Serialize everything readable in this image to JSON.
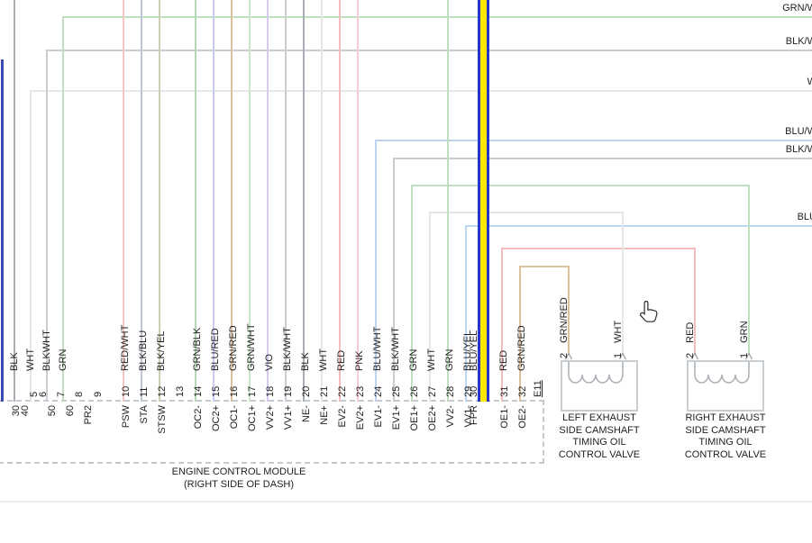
{
  "ecm": {
    "label_line1": "ENGINE CONTROL MODULE",
    "label_line2": "(RIGHT SIDE OF DASH)",
    "connector_id": "E11",
    "left_terminals": {
      "colors": [
        "BLK",
        "WHT",
        "BLKWHT",
        "GRN"
      ],
      "row_labels": [
        "30",
        "40",
        "5",
        "6",
        "50",
        "7",
        "60",
        "8",
        "PR2",
        "9"
      ]
    },
    "pins": [
      {
        "num": "10",
        "color": "RED/WHT",
        "name": "PSW"
      },
      {
        "num": "11",
        "color": "BLK/BLU",
        "name": "STA"
      },
      {
        "num": "12",
        "color": "BLK/YEL",
        "name": "STSW"
      },
      {
        "num": "13",
        "color": "",
        "name": ""
      },
      {
        "num": "14",
        "color": "GRN/BLK",
        "name": "OC2-"
      },
      {
        "num": "15",
        "color": "BLU/RED",
        "name": "OC2+"
      },
      {
        "num": "16",
        "color": "GRN/RED",
        "name": "OC1-"
      },
      {
        "num": "17",
        "color": "GRN/WHT",
        "name": "OC1+"
      },
      {
        "num": "18",
        "color": "VIO",
        "name": "VV2+"
      },
      {
        "num": "19",
        "color": "BLK/WHT",
        "name": "VV1+"
      },
      {
        "num": "20",
        "color": "BLK",
        "name": "NE-"
      },
      {
        "num": "21",
        "color": "WHT",
        "name": "NE+"
      },
      {
        "num": "22",
        "color": "RED",
        "name": "EV2-"
      },
      {
        "num": "23",
        "color": "PNK",
        "name": "EV2+"
      },
      {
        "num": "24",
        "color": "BLU/WHT",
        "name": "EV1-"
      },
      {
        "num": "25",
        "color": "BLK/WHT",
        "name": "EV1+"
      },
      {
        "num": "26",
        "color": "GRN",
        "name": "OE1+"
      },
      {
        "num": "27",
        "color": "WHT",
        "name": "OE2+"
      },
      {
        "num": "28",
        "color": "GRN",
        "name": "VV2-"
      },
      {
        "num": "29",
        "color": "BLU/YEL",
        "name": "VV1-"
      },
      {
        "num": "30",
        "color": "BLU/YEL",
        "name": "FPR",
        "highlighted": true
      },
      {
        "num": "31",
        "color": "RED",
        "name": "OE1-"
      },
      {
        "num": "32",
        "color": "GRN/RED",
        "name": "OE2-"
      }
    ]
  },
  "right_exit_labels": [
    "GRN/W",
    "BLK/W",
    "W",
    "BLU/W",
    "BLK/W",
    "BLU"
  ],
  "valves": {
    "left": {
      "pins": [
        {
          "num": "2",
          "color": "GRN/RED"
        },
        {
          "num": "1",
          "color": "WHT"
        }
      ],
      "label_lines": [
        "LEFT EXHAUST",
        "SIDE CAMSHAFT",
        "TIMING OIL",
        "CONTROL VALVE"
      ]
    },
    "right": {
      "pins": [
        {
          "num": "2",
          "color": "RED"
        },
        {
          "num": "1",
          "color": "GRN"
        }
      ],
      "label_lines": [
        "RIGHT EXHAUST",
        "SIDE CAMSHAFT",
        "TIMING OIL",
        "CONTROL VALVE"
      ]
    }
  },
  "highlight": {
    "wire": "BLU/YEL",
    "fill": "#ffe800",
    "edge": "#2636c8"
  },
  "wire_colors": {
    "RED/WHT": "#f3c6c6",
    "BLK/BLU": "#bdc4d2",
    "BLK/YEL": "#cfcdb4",
    "GRN/BLK": "#b7d8b7",
    "BLU/RED": "#c9cbf2",
    "GRN/RED": "#dcc19e",
    "GRN/WHT": "#cbe5cb",
    "VIO": "#d8c9f0",
    "BLK/WHT": "#c9cdd1",
    "BLK": "#a7adb3",
    "WHT": "#e4e6e8",
    "RED": "#f3bdbd",
    "PNK": "#f6c9dd",
    "BLU/WHT": "#bed3f0",
    "GRN": "#bfdfbf",
    "BLU/YEL": "#bdd7ef",
    "NAVY_EDGE": "#3b4ab2"
  },
  "ui": {
    "cursor": "hand-pointer"
  }
}
